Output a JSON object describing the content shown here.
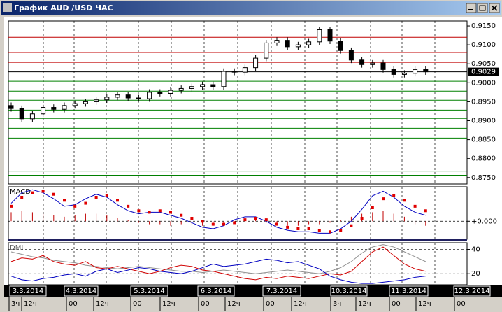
{
  "window": {
    "title": "График AUD /USD ЧАС"
  },
  "chart_data": [
    {
      "type": "candlestick",
      "ylim": [
        0.8733,
        0.9163
      ],
      "yticks": [
        {
          "value": 0.915,
          "label": "0.9150"
        },
        {
          "value": 0.91,
          "label": "0.9100"
        },
        {
          "value": 0.905,
          "label": "0.9050"
        },
        {
          "value": 0.9,
          "label": "0.9000"
        },
        {
          "value": 0.895,
          "label": "0.8950"
        },
        {
          "value": 0.89,
          "label": "0.8900"
        },
        {
          "value": 0.885,
          "label": "0.8850"
        },
        {
          "value": 0.88,
          "label": "0.8800"
        },
        {
          "value": 0.875,
          "label": "0.8750"
        }
      ],
      "last_value": 0.9029,
      "levels": [
        {
          "value": 0.912,
          "color": "#c00000"
        },
        {
          "value": 0.908,
          "color": "#c00000"
        },
        {
          "value": 0.9054,
          "color": "#c00000"
        },
        {
          "value": 0.9029,
          "color": "#000000"
        },
        {
          "value": 0.9004,
          "color": "#008000"
        },
        {
          "value": 0.8978,
          "color": "#008000"
        },
        {
          "value": 0.8954,
          "color": "#008000"
        },
        {
          "value": 0.8928,
          "color": "#008000"
        },
        {
          "value": 0.8906,
          "color": "#008000"
        },
        {
          "value": 0.888,
          "color": "#008000"
        },
        {
          "value": 0.8854,
          "color": "#008000"
        },
        {
          "value": 0.8828,
          "color": "#008000"
        },
        {
          "value": 0.8804,
          "color": "#008000"
        },
        {
          "value": 0.8767,
          "color": "#008000"
        },
        {
          "value": 0.8756,
          "color": "#008000"
        }
      ],
      "open": [
        0.894,
        0.8932,
        0.8905,
        0.8918,
        0.8935,
        0.893,
        0.894,
        0.8945,
        0.895,
        0.8955,
        0.8962,
        0.8968,
        0.896,
        0.8958,
        0.8975,
        0.8972,
        0.898,
        0.8985,
        0.899,
        0.8995,
        0.899,
        0.903,
        0.9028,
        0.904,
        0.9065,
        0.9105,
        0.9112,
        0.9095,
        0.91,
        0.9108,
        0.914,
        0.911,
        0.9085,
        0.906,
        0.9048,
        0.9052,
        0.9035,
        0.9022,
        0.9025,
        0.9035
      ],
      "high": [
        0.8948,
        0.894,
        0.8926,
        0.8943,
        0.8943,
        0.8948,
        0.8953,
        0.8958,
        0.8963,
        0.897,
        0.8976,
        0.8976,
        0.8968,
        0.8983,
        0.8983,
        0.8988,
        0.8993,
        0.8998,
        0.9003,
        0.9003,
        0.9038,
        0.9038,
        0.9048,
        0.9073,
        0.9113,
        0.912,
        0.912,
        0.9108,
        0.9116,
        0.9148,
        0.9148,
        0.9118,
        0.9093,
        0.9068,
        0.906,
        0.906,
        0.9043,
        0.9033,
        0.9043,
        0.9043
      ],
      "low": [
        0.8924,
        0.8897,
        0.8897,
        0.891,
        0.8922,
        0.8922,
        0.8932,
        0.8937,
        0.8942,
        0.8947,
        0.8954,
        0.8952,
        0.895,
        0.895,
        0.8964,
        0.8964,
        0.8972,
        0.8977,
        0.8982,
        0.8982,
        0.8982,
        0.902,
        0.902,
        0.9032,
        0.9057,
        0.9097,
        0.9087,
        0.9087,
        0.9092,
        0.91,
        0.9102,
        0.9077,
        0.9052,
        0.904,
        0.904,
        0.9027,
        0.9014,
        0.9014,
        0.9017,
        0.9021
      ],
      "close": [
        0.8932,
        0.8905,
        0.8918,
        0.8935,
        0.893,
        0.894,
        0.8945,
        0.895,
        0.8955,
        0.8962,
        0.8968,
        0.896,
        0.8958,
        0.8975,
        0.8972,
        0.898,
        0.8985,
        0.899,
        0.8995,
        0.899,
        0.903,
        0.9028,
        0.904,
        0.9065,
        0.9105,
        0.9112,
        0.9095,
        0.91,
        0.9108,
        0.914,
        0.911,
        0.9085,
        0.906,
        0.9048,
        0.9052,
        0.9035,
        0.9022,
        0.9025,
        0.9035,
        0.9029
      ]
    },
    {
      "type": "macd",
      "title": "MACD",
      "ylim": [
        -0.0012,
        0.0023
      ],
      "yticks": [
        {
          "value": 0,
          "label": "+0.000"
        }
      ],
      "series": [
        {
          "name": "histogram",
          "color": "#c00000",
          "values": [
            0.0006,
            0.0007,
            0.0006,
            0.0005,
            0.0004,
            0.0003,
            0.0004,
            0.0005,
            0.0005,
            0.0004,
            0.0002,
            0.0001,
            -0.0001,
            -0.0002,
            -0.0002,
            -0.0003,
            -0.0002,
            -0.0002,
            -0.0003,
            -0.0003,
            -0.0002,
            -0.0001,
            0.0001,
            0.0001,
            -0.0001,
            -0.0002,
            -0.0003,
            -0.0003,
            -0.0002,
            -0.0002,
            -0.0001,
            0.0001,
            0.0003,
            0.0005,
            0.0006,
            0.0007,
            0.0005,
            0.0003,
            -0.0002,
            -0.0003
          ]
        },
        {
          "name": "macd",
          "color": "#0000c0",
          "values": [
            0.0012,
            0.0019,
            0.0021,
            0.0019,
            0.0015,
            0.001,
            0.0011,
            0.0015,
            0.0018,
            0.0016,
            0.0011,
            0.0007,
            0.0005,
            0.0006,
            0.0006,
            0.0004,
            0.0002,
            -0.0001,
            -0.0004,
            -0.0005,
            -0.0003,
            0.0001,
            0.0003,
            0.0003,
            0,
            -0.0004,
            -0.0006,
            -0.0007,
            -0.0007,
            -0.0008,
            -0.0008,
            -0.0005,
            0,
            0.0008,
            0.0017,
            0.002,
            0.0016,
            0.001,
            0.0006,
            0.0004
          ]
        },
        {
          "name": "signal",
          "color": "#e00000",
          "values": [
            0.001,
            0.0016,
            0.0019,
            0.002,
            0.0018,
            0.0014,
            0.001,
            0.0012,
            0.0016,
            0.0017,
            0.0014,
            0.001,
            0.0007,
            0.0006,
            0.0007,
            0.0006,
            0.0004,
            0.0002,
            0,
            -0.0002,
            -0.0002,
            -0.0001,
            0.0001,
            0.0002,
            0.0001,
            -0.0002,
            -0.0004,
            -0.0005,
            -0.0005,
            -0.0006,
            -0.0007,
            -0.0006,
            -0.0003,
            0.0002,
            0.0009,
            0.0015,
            0.0017,
            0.0014,
            0.001,
            0.0007
          ]
        }
      ]
    },
    {
      "type": "line",
      "title": "DMI",
      "ylim": [
        10.9,
        45.5
      ],
      "yticks": [
        40,
        20
      ],
      "series": [
        {
          "name": "adx",
          "color": "#909090",
          "values": [
            38,
            36,
            34,
            33,
            31,
            30,
            29,
            27,
            26,
            25,
            24,
            25,
            26,
            25,
            24,
            23,
            22,
            22,
            21,
            22,
            23,
            22,
            21,
            20,
            21,
            22,
            23,
            22,
            21,
            20,
            22,
            25,
            30,
            37,
            42,
            44,
            42,
            38,
            34,
            30
          ]
        },
        {
          "name": "minus-di",
          "color": "#d00000",
          "values": [
            30,
            33,
            32,
            35,
            30,
            28,
            27,
            30,
            25,
            24,
            26,
            24,
            22,
            20,
            22,
            25,
            27,
            26,
            23,
            22,
            20,
            18,
            16,
            15,
            17,
            16,
            18,
            17,
            16,
            18,
            20,
            19,
            22,
            30,
            38,
            42,
            35,
            28,
            24,
            22
          ]
        },
        {
          "name": "plus-di",
          "color": "#0000c0",
          "values": [
            18,
            15,
            14,
            16,
            17,
            19,
            20,
            18,
            22,
            24,
            21,
            23,
            25,
            24,
            22,
            21,
            20,
            22,
            25,
            28,
            26,
            27,
            28,
            30,
            32,
            31,
            29,
            30,
            27,
            24,
            18,
            15,
            13,
            12,
            12,
            13,
            14,
            15,
            17,
            18
          ]
        }
      ]
    }
  ],
  "time_axis": {
    "dates": [
      "3.3.2014",
      "4.3.2014",
      "5.3.2014",
      "6.3.2014",
      "7.3.2014",
      "10.3.2014",
      "11.3.2014",
      "12.3.2014"
    ],
    "hours": [
      "3ч",
      "12ч",
      "00",
      "12ч",
      "00",
      "12ч",
      "00",
      "12ч",
      "00",
      "12ч",
      "3ч",
      "12ч",
      "00",
      "12ч",
      "00"
    ]
  }
}
